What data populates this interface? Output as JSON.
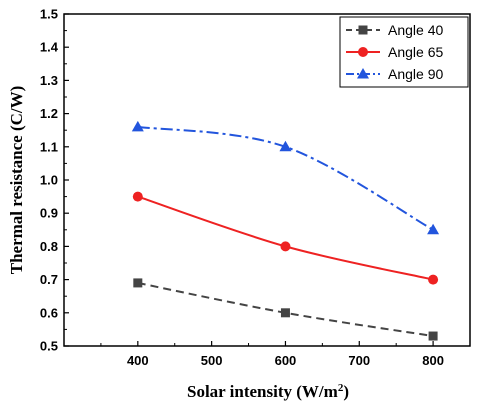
{
  "chart_data": {
    "type": "line",
    "xlabel": "Solar intensity (W/m",
    "xlabel_sup": "2",
    "xlabel_end": ")",
    "ylabel": "Thermal resistance (C/W)",
    "xlim": [
      300,
      850
    ],
    "ylim": [
      0.5,
      1.5
    ],
    "xticks": [
      400,
      500,
      600,
      700,
      800
    ],
    "xtick_labels": [
      "400",
      "500",
      "600",
      "700",
      "800"
    ],
    "yticks": [
      0.5,
      0.6,
      0.7,
      0.8,
      0.9,
      1.0,
      1.1,
      1.2,
      1.3,
      1.4,
      1.5
    ],
    "ytick_labels": [
      "0.5",
      "0.6",
      "0.7",
      "0.8",
      "0.9",
      "1.0",
      "1.1",
      "1.2",
      "1.3",
      "1.4",
      "1.5"
    ],
    "grid": false,
    "legend_position": "top-right",
    "series": [
      {
        "name": "Angle 40",
        "color": "#444444",
        "marker": "square",
        "line_style": "dashed",
        "x": [
          400,
          600,
          800
        ],
        "y": [
          0.69,
          0.6,
          0.53
        ]
      },
      {
        "name": "Angle 65",
        "color": "#ee2222",
        "marker": "circle",
        "line_style": "solid",
        "x": [
          400,
          600,
          800
        ],
        "y": [
          0.95,
          0.8,
          0.7
        ]
      },
      {
        "name": "Angle 90",
        "color": "#2255dd",
        "marker": "triangle",
        "line_style": "dash-dot",
        "x": [
          400,
          600,
          800
        ],
        "y": [
          1.16,
          1.1,
          0.85
        ]
      }
    ]
  }
}
